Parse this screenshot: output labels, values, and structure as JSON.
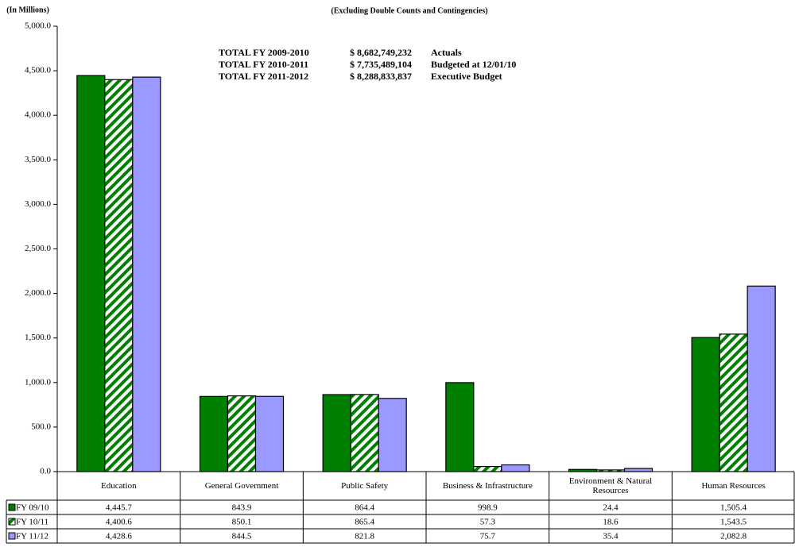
{
  "chart_data": {
    "type": "bar",
    "title": "(Excluding Double Counts and Contingencies)",
    "y_axis_label": "(In Millions)",
    "annotations": [
      [
        "TOTAL FY 2009-2010",
        "$ 8,682,749,232",
        "Actuals"
      ],
      [
        "TOTAL FY 2010-2011",
        "$ 7,735,489,104",
        "Budgeted at 12/01/10"
      ],
      [
        "TOTAL FY 2011-2012",
        "$ 8,288,833,837",
        "Executive Budget"
      ]
    ],
    "categories": [
      "Education",
      "General Government",
      "Public Safety",
      "Business & Infrastructure",
      "Environment & Natural Resources",
      "Human Resources"
    ],
    "series": [
      {
        "name": "FY 09/10",
        "color": "#008000",
        "hatch": false,
        "values": [
          4445.7,
          843.9,
          864.4,
          998.9,
          24.4,
          1505.4
        ],
        "value_labels": [
          "4,445.7",
          "843.9",
          "864.4",
          "998.9",
          "24.4",
          "1,505.4"
        ]
      },
      {
        "name": "FY 10/11",
        "color": "#008000",
        "hatch": true,
        "values": [
          4400.6,
          850.1,
          865.4,
          57.3,
          18.6,
          1543.5
        ],
        "value_labels": [
          "4,400.6",
          "850.1",
          "865.4",
          "57.3",
          "18.6",
          "1,543.5"
        ]
      },
      {
        "name": "FY 11/12",
        "color": "#9999ff",
        "hatch": false,
        "values": [
          4428.6,
          844.5,
          821.8,
          75.7,
          35.4,
          2082.8
        ],
        "value_labels": [
          "4,428.6",
          "844.5",
          "821.8",
          "75.7",
          "35.4",
          "2,082.8"
        ]
      }
    ],
    "ylim": [
      0,
      5000
    ],
    "yticks": [
      {
        "value": 0,
        "label": "0.0"
      },
      {
        "value": 500,
        "label": "500.0"
      },
      {
        "value": 1000,
        "label": "1,000.0"
      },
      {
        "value": 1500,
        "label": "1,500.0"
      },
      {
        "value": 2000,
        "label": "2,000.0"
      },
      {
        "value": 2500,
        "label": "2,500.0"
      },
      {
        "value": 3000,
        "label": "3,000.0"
      },
      {
        "value": 3500,
        "label": "3,500.0"
      },
      {
        "value": 4000,
        "label": "4,000.0"
      },
      {
        "value": 4500,
        "label": "4,500.0"
      },
      {
        "value": 5000,
        "label": "5,000.0"
      }
    ],
    "grid": false
  }
}
